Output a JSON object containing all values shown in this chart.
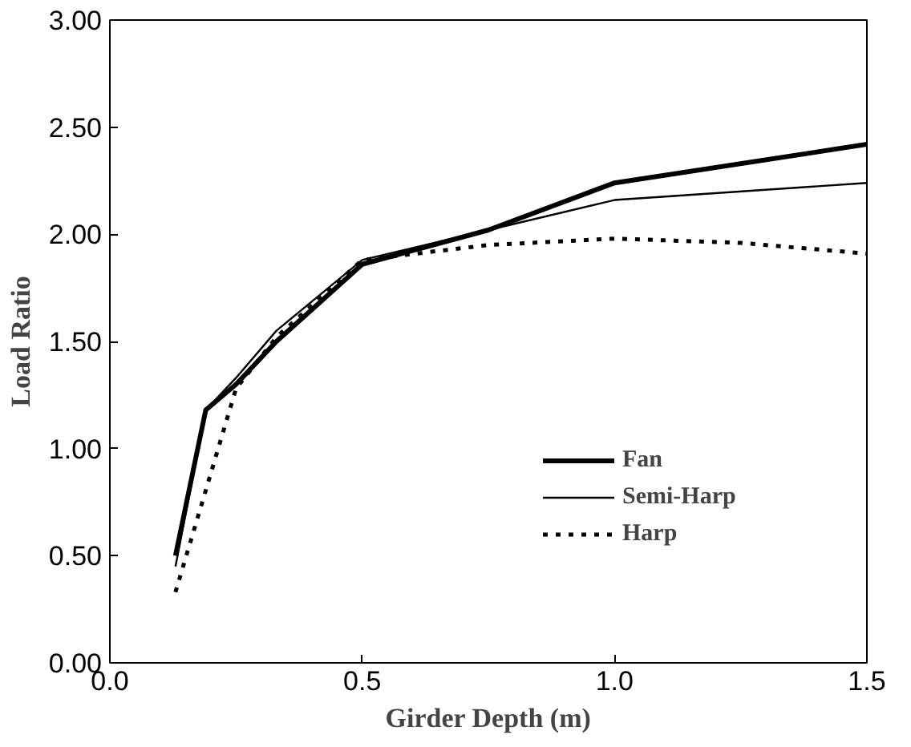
{
  "chart_data": {
    "type": "line",
    "xlabel": "Girder Depth (m)",
    "ylabel": "Load Ratio",
    "xlim": [
      0,
      1.5
    ],
    "xticks": [
      {
        "value": 0,
        "label": "0.0"
      },
      {
        "value": 0.5,
        "label": "0.5"
      },
      {
        "value": 1,
        "label": "1.0"
      },
      {
        "value": 1.5,
        "label": "1.5"
      }
    ],
    "ylim": [
      0,
      3
    ],
    "yticks": [
      {
        "value": 0,
        "label": "0.00"
      },
      {
        "value": 0.5,
        "label": "0.50"
      },
      {
        "value": 1,
        "label": "1.00"
      },
      {
        "value": 1.5,
        "label": "1.50"
      },
      {
        "value": 2,
        "label": "2.00"
      },
      {
        "value": 2.5,
        "label": "2.50"
      },
      {
        "value": 3,
        "label": "3.00"
      }
    ],
    "grid": false,
    "legend": "center",
    "marker": "none",
    "series": [
      {
        "name": "Fan",
        "color": "#000000",
        "line_style": "solid",
        "x": [
          0.13,
          0.19,
          0.25,
          0.33,
          0.5,
          0.75,
          1.0,
          1.5
        ],
        "values": [
          0.5,
          1.18,
          1.3,
          1.5,
          1.86,
          2.02,
          2.24,
          2.42
        ]
      },
      {
        "name": "Semi-Harp",
        "color": "#000000",
        "line_style": "solid",
        "x": [
          0.13,
          0.19,
          0.25,
          0.33,
          0.5,
          0.75,
          1.0,
          1.5
        ],
        "values": [
          0.45,
          1.18,
          1.33,
          1.55,
          1.88,
          2.02,
          2.16,
          2.24
        ]
      },
      {
        "name": "Harp",
        "color": "#000000",
        "line_style": "dotted",
        "x": [
          0.13,
          0.25,
          0.33,
          0.5,
          0.75,
          1.0,
          1.25,
          1.5
        ],
        "values": [
          0.33,
          1.28,
          1.52,
          1.88,
          1.95,
          1.98,
          1.96,
          1.91
        ]
      }
    ]
  }
}
